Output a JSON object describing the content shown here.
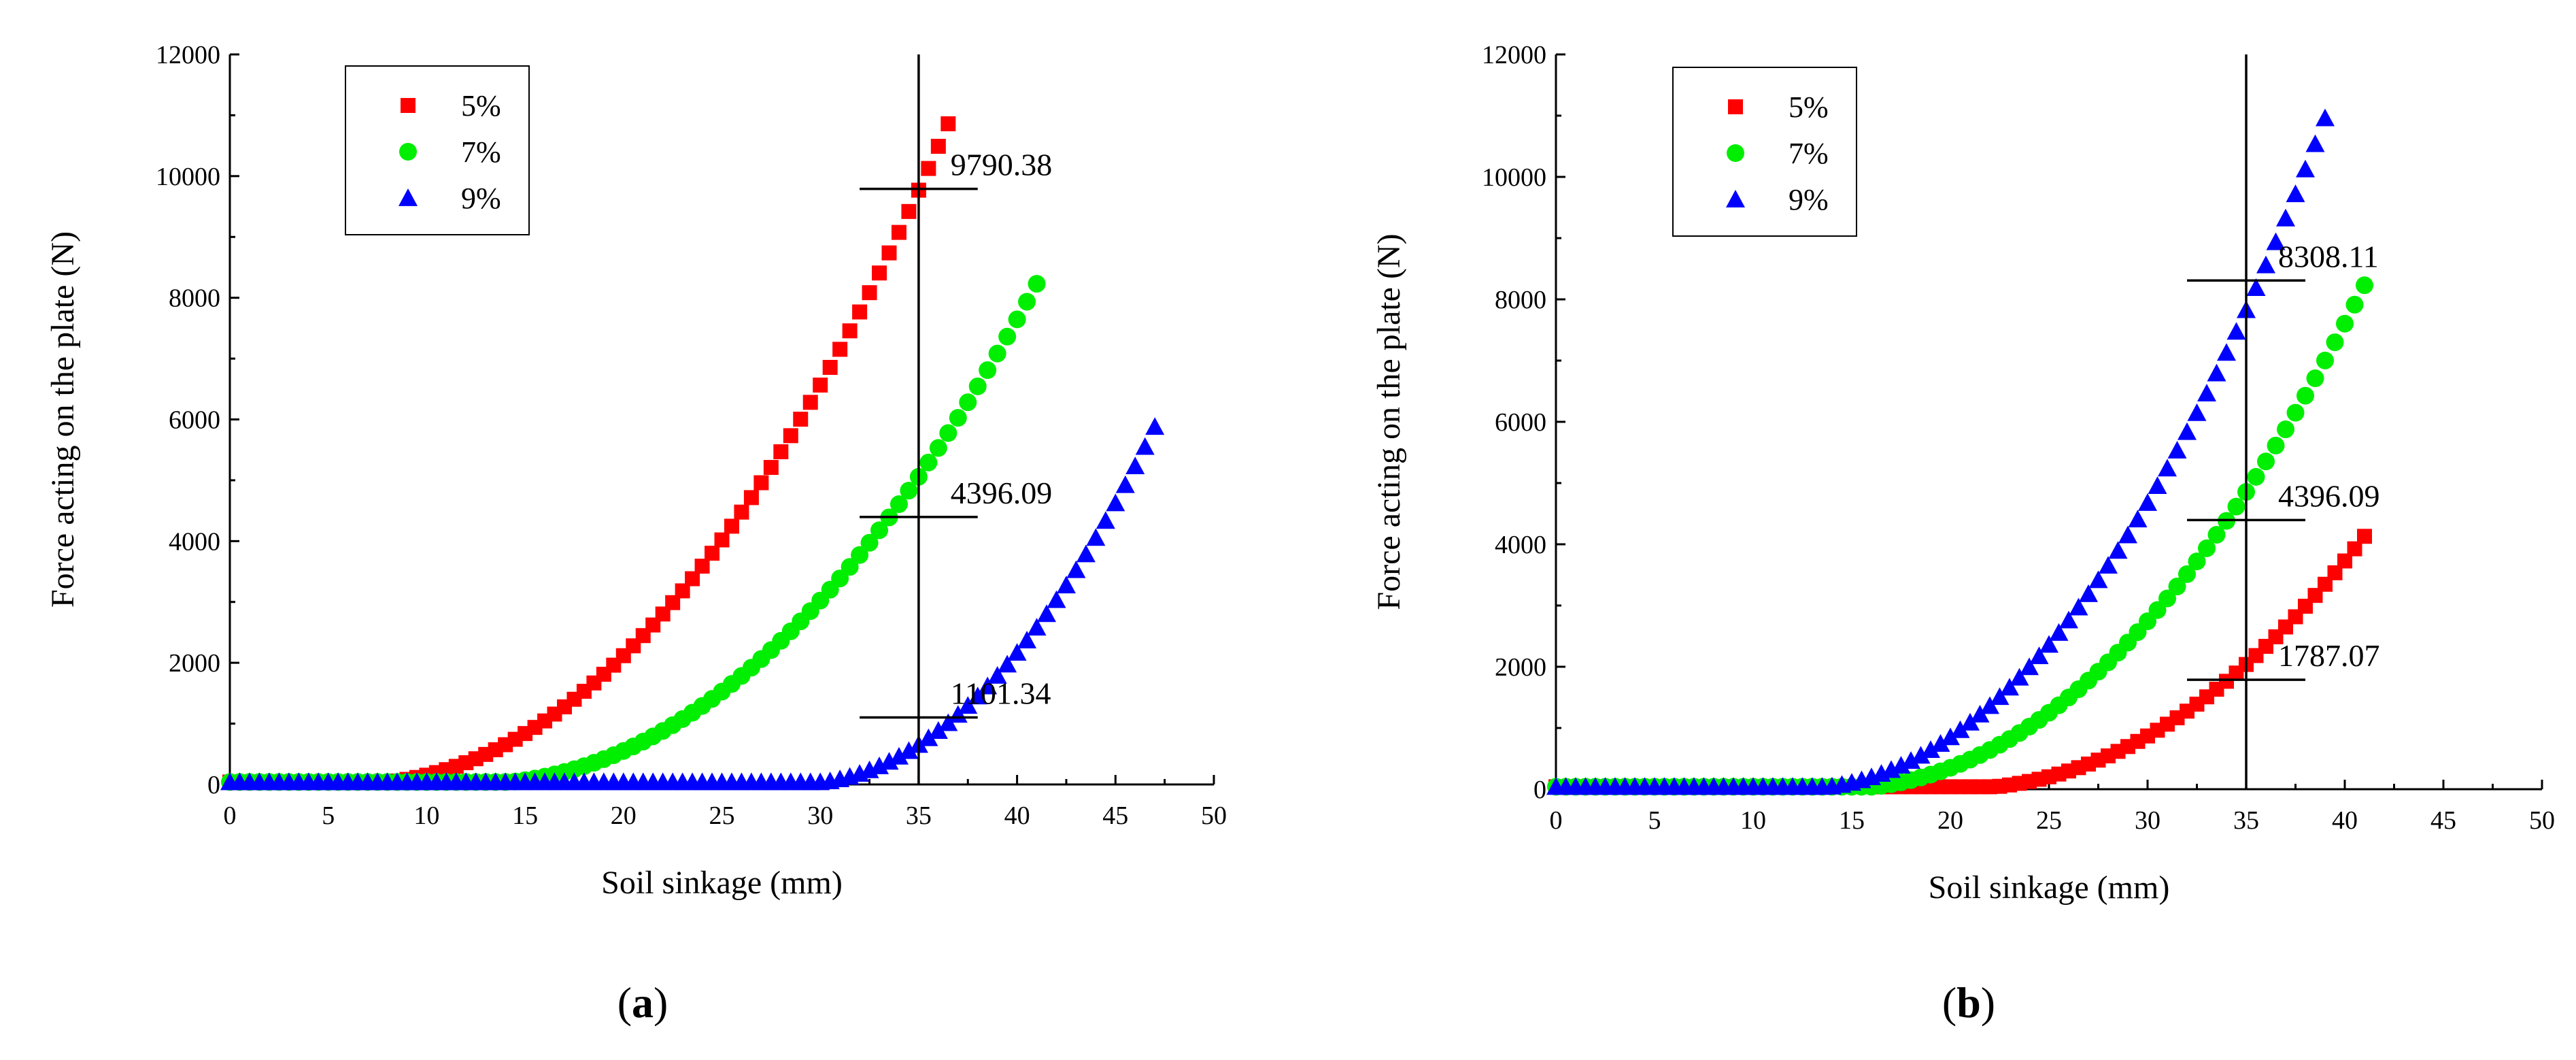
{
  "captions": [
    {
      "open": "(",
      "letter": "a",
      "close": ")"
    },
    {
      "open": "(",
      "letter": "b",
      "close": ")"
    }
  ],
  "colors": {
    "s5": "#ff0000",
    "s7": "#00ee00",
    "s9": "#0000ff"
  },
  "chart_data": [
    {
      "type": "scatter",
      "title": "",
      "xlabel": "Soil sinkage (mm)",
      "ylabel": "Force acting on the plate (N)",
      "xlim": [
        0,
        50
      ],
      "ylim": [
        0,
        12000
      ],
      "xticks": [
        0,
        5,
        10,
        15,
        20,
        25,
        30,
        35,
        40,
        45,
        50
      ],
      "yticks": [
        0,
        2000,
        4000,
        6000,
        8000,
        10000,
        12000
      ],
      "legend_position": "top-left",
      "reference_x": 35,
      "series": [
        {
          "name": "5%",
          "marker": "square",
          "color": "#ff0000",
          "onset": 6,
          "x_end": 36.5,
          "y_end": 10860,
          "step": 0.5
        },
        {
          "name": "7%",
          "marker": "circle",
          "color": "#00ee00",
          "onset": 12,
          "x_end": 41,
          "y_end": 8230,
          "step": 0.5
        },
        {
          "name": "9%",
          "marker": "triangle",
          "color": "#0000ff",
          "onset": 28.5,
          "x_end": 47,
          "y_end": 5880,
          "step": 0.5
        }
      ],
      "annotations": [
        {
          "label": "9790.38",
          "x": 35,
          "y": 9790.38
        },
        {
          "label": "4396.09",
          "x": 35,
          "y": 4396.09
        },
        {
          "label": "1101.34",
          "x": 35,
          "y": 1101.34
        }
      ]
    },
    {
      "type": "scatter",
      "title": "",
      "xlabel": "Soil sinkage (mm)",
      "ylabel": "Force acting on the plate (N)",
      "xlim": [
        0,
        50
      ],
      "ylim": [
        0,
        12000
      ],
      "xticks": [
        0,
        5,
        10,
        15,
        20,
        25,
        30,
        35,
        40,
        45,
        50
      ],
      "yticks": [
        0,
        2000,
        4000,
        6000,
        8000,
        10000,
        12000
      ],
      "legend_position": "top-left",
      "reference_x": 35,
      "series": [
        {
          "name": "5%",
          "marker": "square",
          "color": "#ff0000",
          "onset": 20,
          "x_end": 41,
          "y_end": 4130,
          "step": 0.5
        },
        {
          "name": "7%",
          "marker": "circle",
          "color": "#00ee00",
          "onset": 14,
          "x_end": 41,
          "y_end": 8230,
          "step": 0.5
        },
        {
          "name": "9%",
          "marker": "triangle",
          "color": "#0000ff",
          "onset": 12,
          "x_end": 39,
          "y_end": 10960,
          "step": 0.5
        }
      ],
      "annotations": [
        {
          "label": "8308.11",
          "x": 35,
          "y": 8308.11
        },
        {
          "label": "4396.09",
          "x": 35,
          "y": 4396.09
        },
        {
          "label": "1787.07",
          "x": 35,
          "y": 1787.07
        }
      ]
    }
  ]
}
